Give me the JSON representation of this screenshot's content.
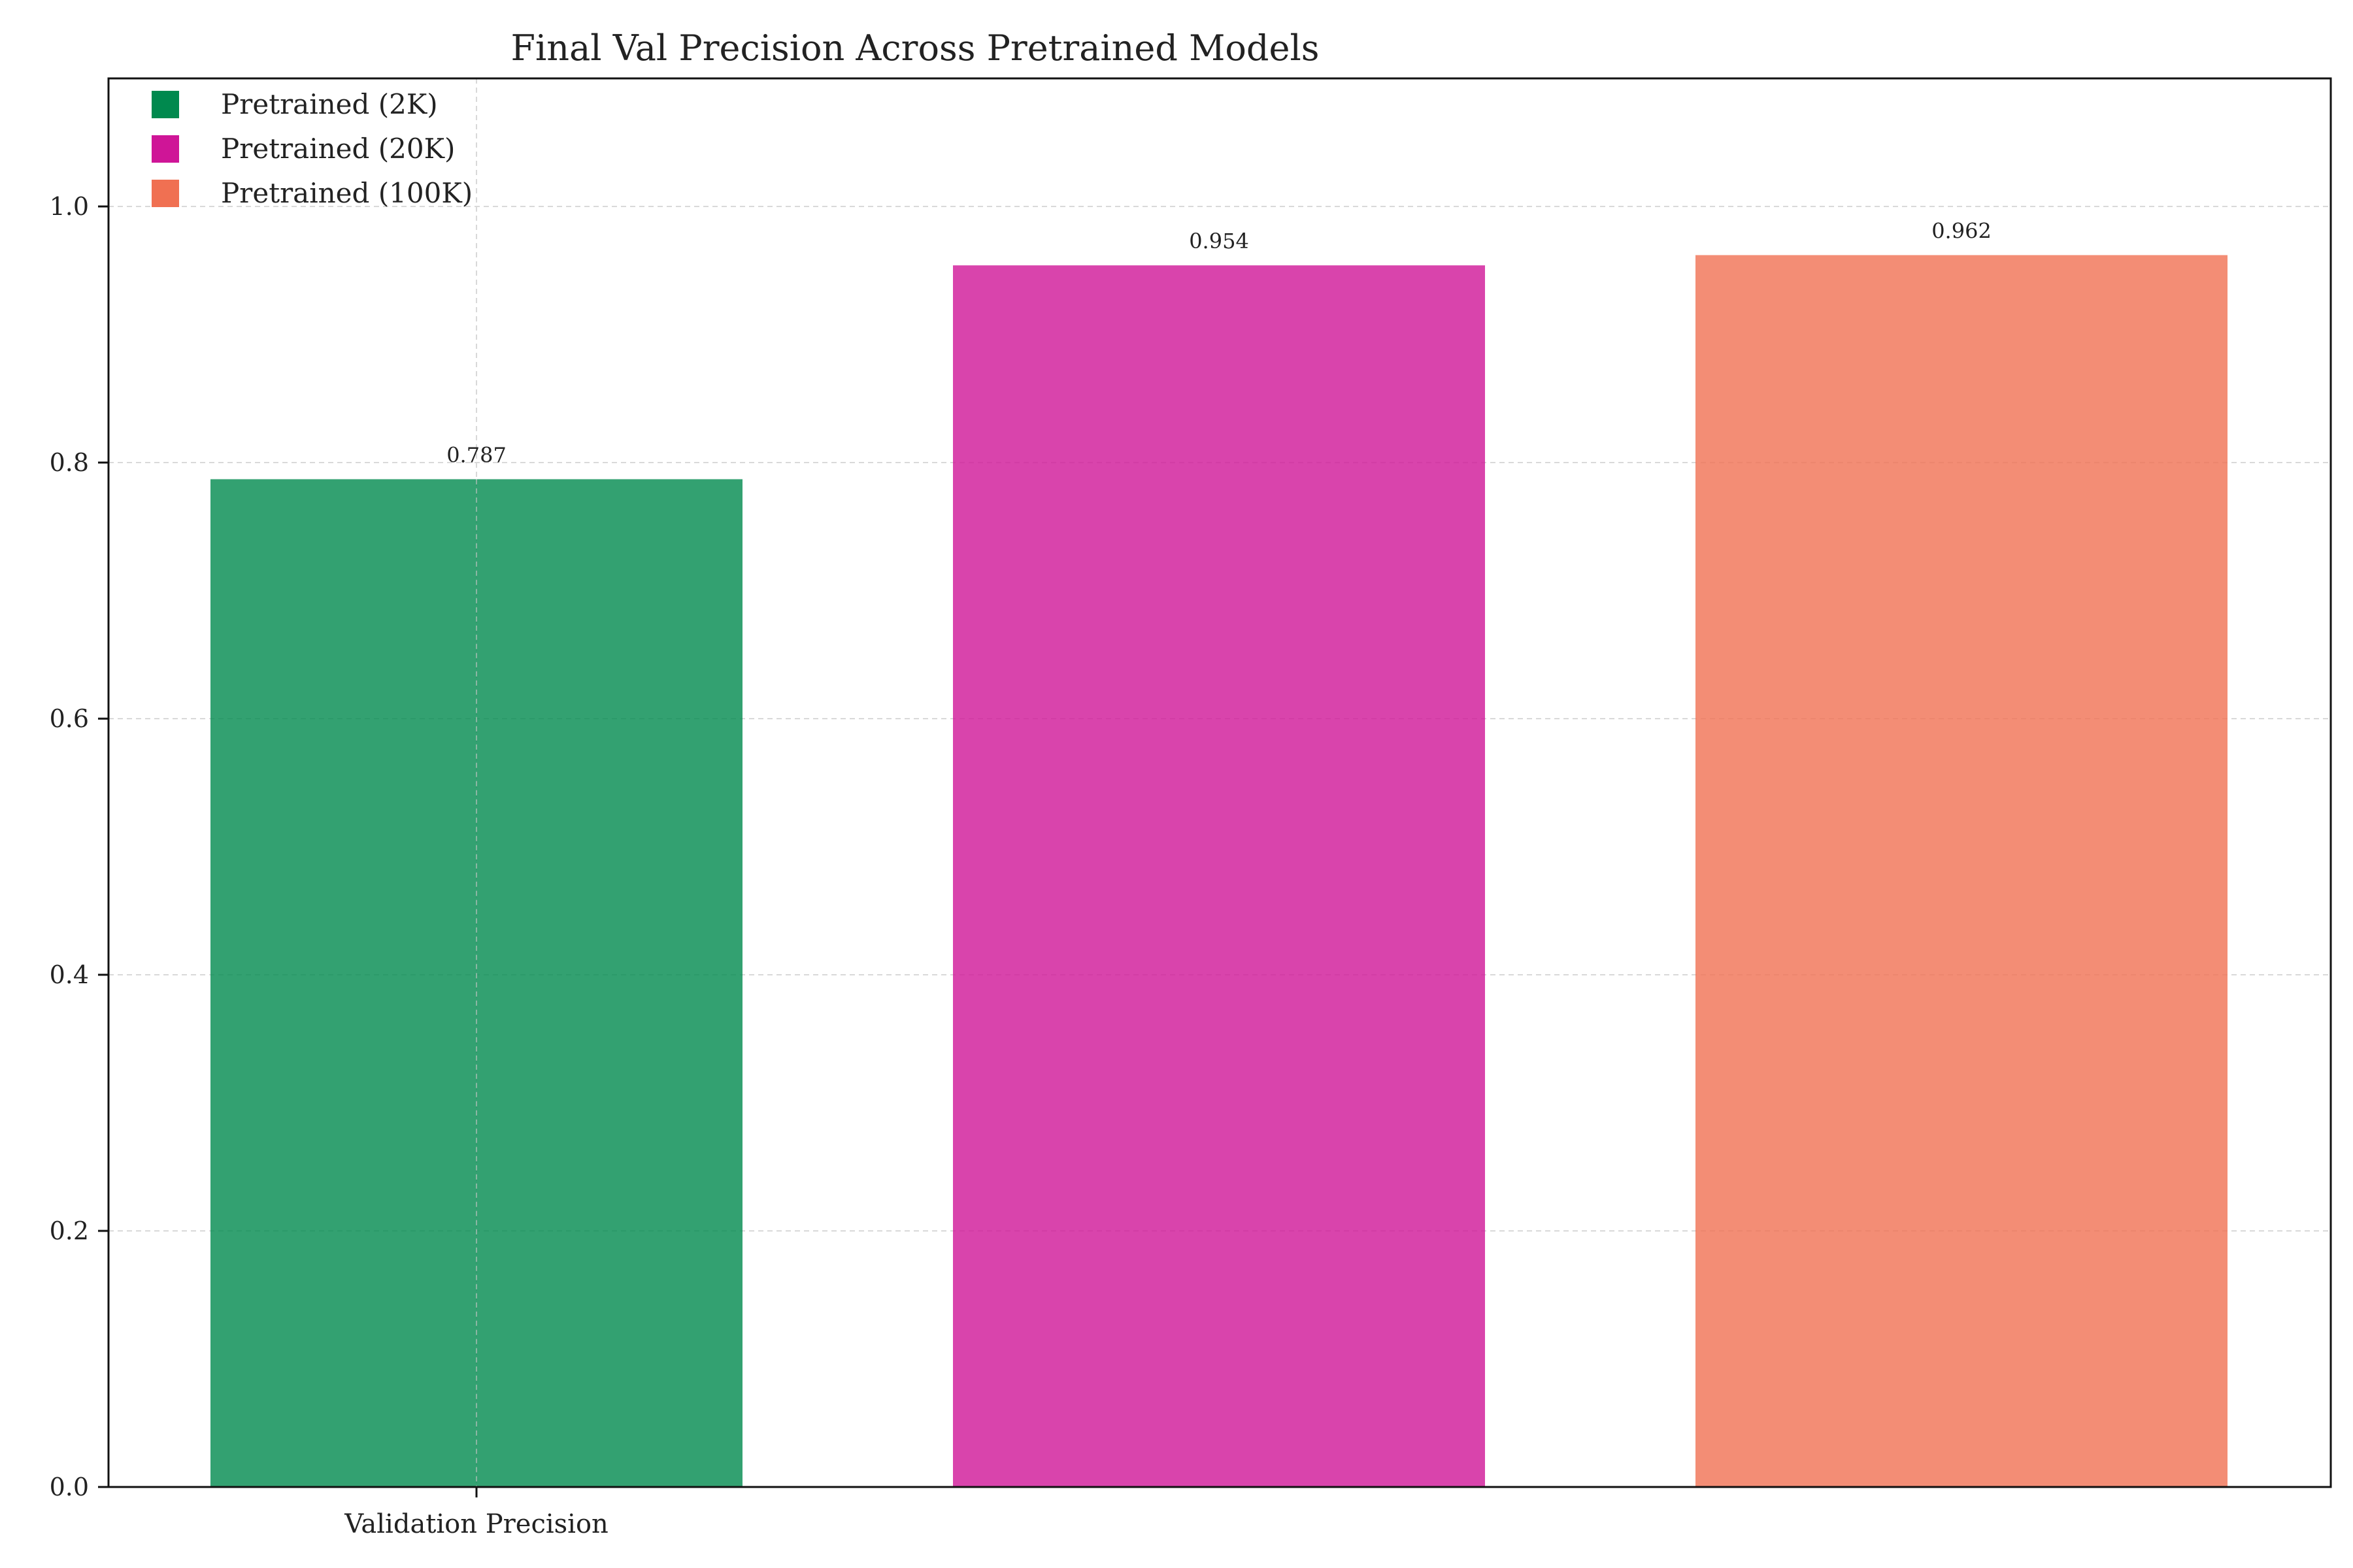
{
  "chart_data": {
    "type": "bar",
    "title": "Final Val Precision Across Pretrained Models",
    "xlabel": "",
    "ylabel": "",
    "categories": [
      "Validation Precision"
    ],
    "series": [
      {
        "name": "Pretrained (2K)",
        "values": [
          0.787
        ],
        "color": "#00894E"
      },
      {
        "name": "Pretrained (20K)",
        "values": [
          0.954
        ],
        "color": "#CF1597"
      },
      {
        "name": "Pretrained (100K)",
        "values": [
          0.962
        ],
        "color": "#F07052"
      }
    ],
    "ylim": [
      0,
      1.1
    ],
    "yticks": [
      "0.0",
      "0.2",
      "0.4",
      "0.6",
      "0.8",
      "1.0"
    ],
    "data_labels": [
      "0.787",
      "0.954",
      "0.962"
    ],
    "grid": true,
    "legend_position": "top-left"
  }
}
